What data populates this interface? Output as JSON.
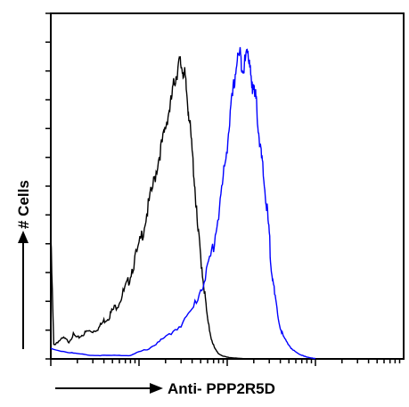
{
  "chart_data": {
    "type": "line",
    "title": "",
    "xlabel": "Anti- PPP2R5D",
    "ylabel": "# Cells",
    "x_scale": "log",
    "xlim": [
      1,
      10000
    ],
    "ylim": [
      0,
      100
    ],
    "grid": false,
    "legend": "none",
    "series": [
      {
        "color": "#000000",
        "x": [
          1.0,
          1.08,
          1.2,
          1.4,
          1.6,
          1.8,
          2.0,
          2.3,
          2.6,
          3.0,
          3.5,
          4.0,
          4.5,
          5.0,
          5.8,
          6.6,
          7.5,
          8.5,
          10,
          11.5,
          13,
          15,
          17,
          19,
          21,
          23,
          25,
          27,
          29,
          31,
          33,
          35,
          37,
          40,
          43,
          46,
          50,
          55,
          60,
          66,
          72,
          80,
          90,
          100,
          115,
          130,
          150
        ],
        "y": [
          35,
          4,
          5,
          6,
          5,
          7,
          6,
          7,
          8,
          8,
          9,
          11,
          12,
          14,
          16,
          19,
          22,
          27,
          32,
          39,
          45,
          52,
          59,
          64,
          70,
          74,
          80,
          83,
          86,
          84,
          82,
          76,
          70,
          60,
          50,
          38,
          30,
          20,
          11,
          6,
          3,
          1.5,
          0.8,
          0.5,
          0.3,
          0.2,
          0.1
        ]
      },
      {
        "color": "#0000ff",
        "x": [
          1.0,
          1.5,
          2.0,
          3.0,
          4.0,
          6.0,
          8.0,
          10,
          13,
          17,
          22,
          30,
          40,
          50,
          60,
          70,
          80,
          90,
          100,
          110,
          120,
          130,
          140,
          150,
          160,
          170,
          180,
          190,
          200,
          210,
          220,
          235,
          250,
          270,
          290,
          310,
          330,
          360,
          400,
          440,
          500,
          560,
          640,
          720,
          800,
          900,
          1000
        ],
        "y": [
          3,
          2,
          1.5,
          1,
          1,
          1,
          1,
          2,
          3,
          5,
          7,
          10,
          14,
          20,
          26,
          33,
          42,
          52,
          62,
          72,
          80,
          87,
          88,
          84,
          86,
          90,
          86,
          78,
          80,
          76,
          70,
          62,
          56,
          48,
          40,
          30,
          22,
          15,
          9,
          6,
          4,
          2.5,
          1.5,
          1,
          0.5,
          0.3,
          0.1
        ]
      }
    ]
  }
}
